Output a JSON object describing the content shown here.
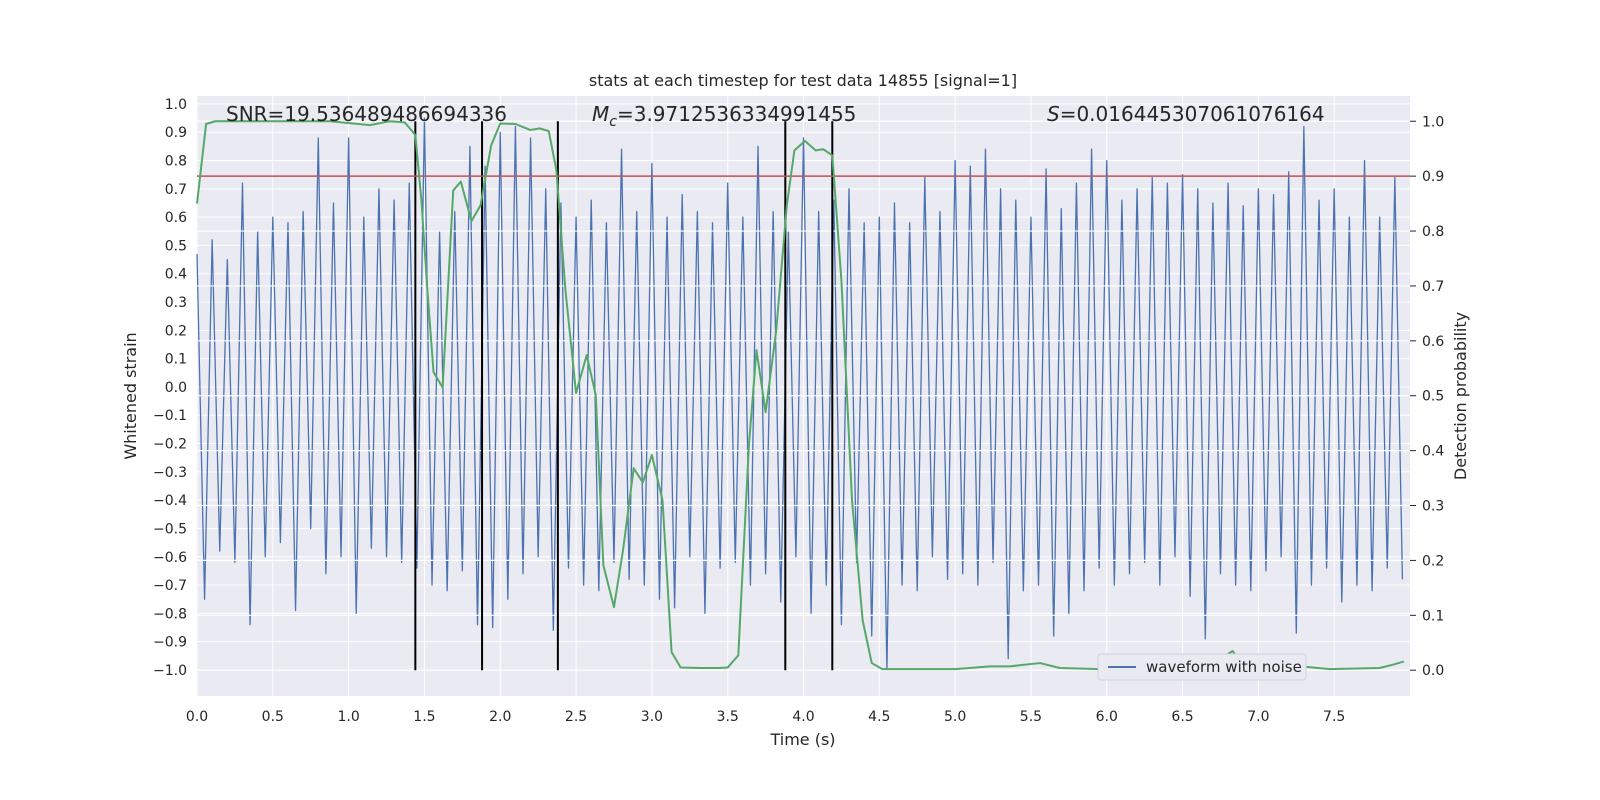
{
  "chart_data": {
    "type": "line",
    "title": "stats at each timestep for test data 14855 [signal=1]",
    "xlabel": "Time (s)",
    "ylabel": "Whitened strain",
    "y2label": "Detection probability",
    "xlim": [
      0,
      8
    ],
    "ylim": [
      -1.092,
      1.028
    ],
    "y2lim": [
      -0.047,
      1.046
    ],
    "grid": true,
    "legend": "lower right",
    "xticks": [
      {
        "value": 0,
        "label": "0.0"
      },
      0.5,
      {
        "value": 1,
        "label": "1.0"
      },
      1.5,
      {
        "value": 2,
        "label": "2.0"
      },
      2.5,
      {
        "value": 3,
        "label": "3.0"
      },
      3.5,
      {
        "value": 4,
        "label": "4.0"
      },
      4.5,
      {
        "value": 5,
        "label": "5.0"
      },
      5.5,
      {
        "value": 6,
        "label": "6.0"
      },
      6.5,
      {
        "value": 7,
        "label": "7.0"
      },
      7.5
    ],
    "yticks": [
      {
        "value": -1,
        "label": "−1.0"
      },
      {
        "value": -0.9,
        "label": "−0.9"
      },
      {
        "value": -0.8,
        "label": "−0.8"
      },
      {
        "value": -0.7,
        "label": "−0.7"
      },
      {
        "value": -0.6,
        "label": "−0.6"
      },
      {
        "value": -0.5,
        "label": "−0.5"
      },
      {
        "value": -0.4,
        "label": "−0.4"
      },
      {
        "value": -0.3,
        "label": "−0.3"
      },
      {
        "value": -0.2,
        "label": "−0.2"
      },
      {
        "value": -0.1,
        "label": "−0.1"
      },
      {
        "value": 0,
        "label": "0.0"
      },
      0.1,
      0.2,
      0.3,
      0.4,
      0.5,
      0.6,
      0.7,
      0.8,
      0.9,
      {
        "value": 1,
        "label": "1.0"
      }
    ],
    "y2ticks": [
      {
        "value": 0,
        "label": "0.0"
      },
      0.1,
      0.2,
      0.3,
      0.4,
      0.5,
      0.6,
      0.7,
      0.8,
      0.9,
      {
        "value": 1,
        "label": "1.0"
      }
    ],
    "series": [
      {
        "name": "waveform with noise",
        "color": "#4c72b0",
        "x": [
          0,
          0.05,
          0.1,
          0.15,
          0.2,
          0.25,
          0.3,
          0.35,
          0.4,
          0.45,
          0.5,
          0.55,
          0.6,
          0.65,
          0.7,
          0.75,
          0.8,
          0.85,
          0.9,
          0.95,
          1,
          1.05,
          1.1,
          1.15,
          1.2,
          1.25,
          1.3,
          1.35,
          1.4,
          1.45,
          1.5,
          1.55,
          1.6,
          1.65,
          1.7,
          1.75,
          1.8,
          1.85,
          1.9,
          1.95,
          2,
          2.05,
          2.1,
          2.15,
          2.2,
          2.25,
          2.3,
          2.35,
          2.4,
          2.45,
          2.5,
          2.55,
          2.6,
          2.65,
          2.7,
          2.75,
          2.8,
          2.85,
          2.9,
          2.95,
          3,
          3.05,
          3.1,
          3.15,
          3.2,
          3.25,
          3.3,
          3.35,
          3.4,
          3.45,
          3.5,
          3.55,
          3.6,
          3.65,
          3.7,
          3.75,
          3.8,
          3.85,
          3.9,
          3.95,
          4,
          4.05,
          4.1,
          4.15,
          4.2,
          4.25,
          4.3,
          4.35,
          4.4,
          4.45,
          4.5,
          4.55,
          4.6,
          4.65,
          4.7,
          4.75,
          4.8,
          4.85,
          4.9,
          4.95,
          5,
          5.05,
          5.1,
          5.15,
          5.2,
          5.25,
          5.3,
          5.35,
          5.4,
          5.45,
          5.5,
          5.55,
          5.6,
          5.65,
          5.7,
          5.75,
          5.8,
          5.85,
          5.9,
          5.95,
          6,
          6.05,
          6.1,
          6.15,
          6.2,
          6.25,
          6.3,
          6.35,
          6.4,
          6.45,
          6.5,
          6.55,
          6.6,
          6.65,
          6.7,
          6.75,
          6.8,
          6.85,
          6.9,
          6.95,
          7,
          7.05,
          7.1,
          7.15,
          7.2,
          7.25,
          7.3,
          7.35,
          7.4,
          7.45,
          7.5,
          7.55,
          7.6,
          7.65,
          7.7,
          7.75,
          7.8,
          7.85,
          7.9,
          7.95
        ],
        "values": [
          0.47,
          -0.75,
          0.52,
          -0.58,
          0.45,
          -0.62,
          0.72,
          -0.84,
          0.55,
          -0.6,
          0.6,
          -0.55,
          0.58,
          -0.79,
          0.62,
          -0.5,
          0.88,
          -0.66,
          0.65,
          -0.6,
          0.88,
          -0.8,
          0.6,
          -0.57,
          0.7,
          -0.6,
          0.66,
          -0.62,
          0.72,
          -0.64,
          0.95,
          -0.7,
          0.55,
          -0.72,
          0.62,
          -0.65,
          0.85,
          -0.84,
          0.78,
          -0.85,
          0.9,
          -0.75,
          0.92,
          -0.66,
          0.88,
          -0.6,
          0.7,
          -0.86,
          0.65,
          -0.64,
          0.6,
          -0.7,
          0.66,
          -0.72,
          0.58,
          -0.62,
          0.84,
          -0.68,
          0.62,
          -0.7,
          0.79,
          -0.75,
          0.6,
          -0.78,
          0.68,
          -0.6,
          0.62,
          -0.8,
          0.58,
          -0.64,
          0.72,
          -0.62,
          0.6,
          -0.7,
          0.85,
          -0.66,
          0.62,
          -0.76,
          0.55,
          -0.6,
          0.88,
          -0.8,
          0.62,
          -0.7,
          0.66,
          -0.84,
          0.7,
          -0.62,
          0.58,
          -0.88,
          0.6,
          -1.0,
          0.65,
          -0.7,
          0.58,
          -0.72,
          0.74,
          -0.6,
          0.62,
          -0.68,
          0.8,
          -0.66,
          0.78,
          -0.7,
          0.84,
          -0.62,
          0.7,
          -0.96,
          0.66,
          -0.72,
          0.6,
          -0.7,
          0.77,
          -0.88,
          0.63,
          -0.8,
          0.72,
          -0.72,
          0.84,
          -0.64,
          0.8,
          -0.7,
          0.66,
          -0.66,
          0.7,
          -0.62,
          0.74,
          -0.7,
          0.72,
          -0.6,
          0.75,
          -0.74,
          0.7,
          -0.89,
          0.65,
          -0.66,
          0.72,
          -0.7,
          0.64,
          -0.72,
          0.7,
          -0.65,
          0.68,
          -0.6,
          0.76,
          -0.87,
          0.92,
          -0.7,
          0.66,
          -0.64,
          0.7,
          -0.76,
          0.6,
          -0.7,
          0.8,
          -0.72,
          0.6,
          -0.64,
          0.74,
          -0.68
        ]
      },
      {
        "color": "#55a868",
        "axis": "y2",
        "x": [
          0,
          0.06,
          0.12,
          0.42,
          0.88,
          1.14,
          1.27,
          1.37,
          1.44,
          1.48,
          1.52,
          1.56,
          1.62,
          1.69,
          1.74,
          1.81,
          1.87,
          1.94,
          2.0,
          2.1,
          2.2,
          2.26,
          2.32,
          2.37,
          2.43,
          2.5,
          2.57,
          2.63,
          2.68,
          2.75,
          2.81,
          2.88,
          2.94,
          3.0,
          3.07,
          3.13,
          3.19,
          3.32,
          3.45,
          3.5,
          3.57,
          3.64,
          3.69,
          3.75,
          3.82,
          3.89,
          3.94,
          4.01,
          4.08,
          4.13,
          4.19,
          4.25,
          4.32,
          4.39,
          4.45,
          4.52,
          5.0,
          5.23,
          5.36,
          5.56,
          5.69,
          5.96,
          6.48,
          6.72,
          6.83,
          6.89,
          6.96,
          7.08,
          7.16,
          7.28,
          7.47,
          7.8,
          7.9,
          7.96
        ],
        "values": [
          0.85,
          0.995,
          1.0,
          1.0,
          1.0,
          0.993,
          1.0,
          0.998,
          0.975,
          0.856,
          0.69,
          0.543,
          0.515,
          0.874,
          0.89,
          0.818,
          0.847,
          0.956,
          0.996,
          0.995,
          0.984,
          0.987,
          0.982,
          0.911,
          0.692,
          0.505,
          0.574,
          0.501,
          0.191,
          0.115,
          0.219,
          0.368,
          0.342,
          0.392,
          0.31,
          0.033,
          0.005,
          0.004,
          0.004,
          0.005,
          0.027,
          0.41,
          0.583,
          0.47,
          0.619,
          0.847,
          0.947,
          0.964,
          0.947,
          0.949,
          0.938,
          0.71,
          0.31,
          0.091,
          0.013,
          0.002,
          0.002,
          0.007,
          0.007,
          0.013,
          0.004,
          0.002,
          0.004,
          0.015,
          0.035,
          0.011,
          0.005,
          0.011,
          0.004,
          0.007,
          0.002,
          0.004,
          0.011,
          0.016
        ]
      }
    ],
    "vlines": {
      "x": [
        1.44,
        1.88,
        2.38,
        3.88,
        4.19
      ],
      "y2": [
        0,
        1
      ],
      "color": "#000000"
    },
    "hline": {
      "y2": 0.9,
      "color": "#c44e52"
    },
    "annotations": [
      {
        "text": "SNR=19.536489486694336"
      },
      {
        "symbol": "M",
        "subscript": "c",
        "text": "=3.9712536334991455"
      },
      {
        "symbol": "S",
        "text": "=0.016445307061076164"
      }
    ]
  }
}
